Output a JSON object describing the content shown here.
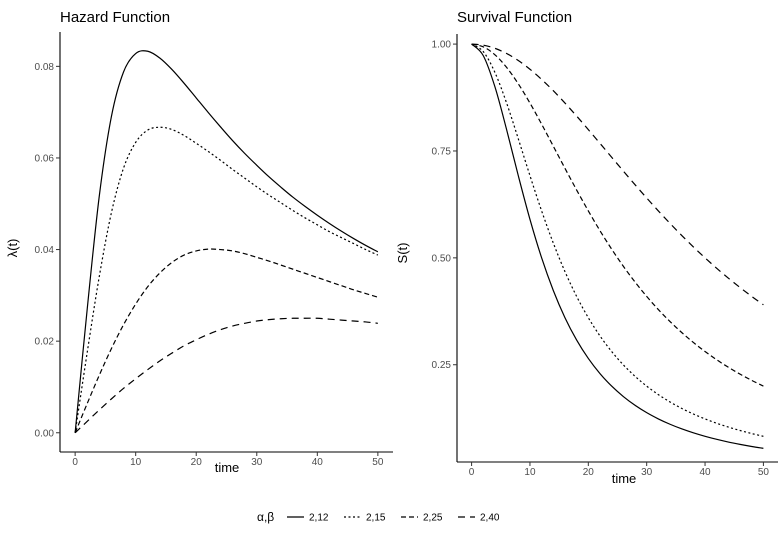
{
  "chart_data": [
    {
      "type": "line",
      "title": "Hazard Function",
      "xlabel": "time",
      "ylabel": "λ(t)",
      "xlim": [
        -2.5,
        52.5
      ],
      "ylim": [
        -0.0042,
        0.0875
      ],
      "xticks": [
        0,
        10,
        20,
        30,
        40,
        50
      ],
      "xtick_labels": [
        "0",
        "10",
        "20",
        "30",
        "40",
        "50"
      ],
      "yticks": [
        0,
        0.02,
        0.04,
        0.06,
        0.08
      ],
      "ytick_labels": [
        "0.00",
        "0.02",
        "0.04",
        "0.06",
        "0.08"
      ],
      "grid": false,
      "x": [
        0,
        2,
        4,
        6,
        8,
        10,
        12,
        14,
        16,
        18,
        20,
        22,
        24,
        26,
        28,
        30,
        32,
        34,
        36,
        38,
        40,
        42,
        44,
        46,
        48,
        50
      ],
      "series": [
        {
          "name": "2,12",
          "dash": "solid",
          "values": [
            0,
            0.0271,
            0.0518,
            0.0691,
            0.0788,
            0.0828,
            0.0833,
            0.0818,
            0.0793,
            0.0763,
            0.0731,
            0.0699,
            0.0668,
            0.0638,
            0.061,
            0.0584,
            0.0559,
            0.0536,
            0.0514,
            0.0494,
            0.0475,
            0.0457,
            0.044,
            0.0424,
            0.0409,
            0.0395
          ]
        },
        {
          "name": "2,15",
          "dash": "dotted",
          "values": [
            0,
            0.0176,
            0.0342,
            0.0481,
            0.0578,
            0.0634,
            0.0661,
            0.0667,
            0.0662,
            0.0649,
            0.0632,
            0.0614,
            0.0595,
            0.0575,
            0.0556,
            0.0537,
            0.0519,
            0.0502,
            0.0485,
            0.0469,
            0.0454,
            0.0439,
            0.0426,
            0.0413,
            0.04,
            0.0388
          ]
        },
        {
          "name": "2,25",
          "dash": "dashed",
          "values": [
            0,
            0.0064,
            0.0126,
            0.0184,
            0.0236,
            0.0281,
            0.0319,
            0.0349,
            0.0372,
            0.0388,
            0.0397,
            0.0401,
            0.04,
            0.0397,
            0.0391,
            0.0383,
            0.0375,
            0.0366,
            0.0357,
            0.0348,
            0.0339,
            0.033,
            0.0321,
            0.0312,
            0.0304,
            0.0296
          ]
        },
        {
          "name": "2,40",
          "dash": "longdash",
          "values": [
            0,
            0.0025,
            0.005,
            0.0074,
            0.0097,
            0.0118,
            0.0138,
            0.0157,
            0.0174,
            0.019,
            0.0203,
            0.0215,
            0.0225,
            0.0233,
            0.0239,
            0.0244,
            0.0247,
            0.0249,
            0.025,
            0.025,
            0.025,
            0.0248,
            0.0246,
            0.0244,
            0.0242,
            0.0239
          ]
        }
      ]
    },
    {
      "type": "line",
      "title": "Survival Function",
      "xlabel": "time",
      "ylabel": "S(t)",
      "xlim": [
        -2.5,
        52.5
      ],
      "ylim": [
        0.0225,
        1.0236
      ],
      "xticks": [
        0,
        10,
        20,
        30,
        40,
        50
      ],
      "xtick_labels": [
        "0",
        "10",
        "20",
        "30",
        "40",
        "50"
      ],
      "yticks": [
        0.25,
        0.5,
        0.75,
        1.0
      ],
      "ytick_labels": [
        "0.25",
        "0.50",
        "0.75",
        "1.00"
      ],
      "grid": false,
      "x": [
        0,
        2,
        4,
        6,
        8,
        10,
        12,
        14,
        16,
        18,
        20,
        22,
        24,
        26,
        28,
        30,
        32,
        34,
        36,
        38,
        40,
        42,
        44,
        46,
        48,
        50
      ],
      "series": [
        {
          "name": "2,12",
          "dash": "solid",
          "values": [
            1.0,
            0.973,
            0.9,
            0.8,
            0.6923,
            0.5902,
            0.5,
            0.4237,
            0.36,
            0.3077,
            0.2647,
            0.2293,
            0.2,
            0.1756,
            0.1552,
            0.1379,
            0.1233,
            0.1108,
            0.1,
            0.0907,
            0.0826,
            0.0755,
            0.0692,
            0.0637,
            0.0588,
            0.0545
          ]
        },
        {
          "name": "2,15",
          "dash": "dotted",
          "values": [
            1.0,
            0.9825,
            0.9336,
            0.8621,
            0.7785,
            0.6923,
            0.6098,
            0.5346,
            0.4678,
            0.4098,
            0.36,
            0.3174,
            0.2809,
            0.2497,
            0.223,
            0.2,
            0.1801,
            0.1629,
            0.1479,
            0.1348,
            0.1233,
            0.1131,
            0.1041,
            0.0962,
            0.089,
            0.0826
          ]
        },
        {
          "name": "2,25",
          "dash": "dashed",
          "values": [
            1.0,
            0.9936,
            0.975,
            0.9455,
            0.9071,
            0.8621,
            0.8127,
            0.7612,
            0.7094,
            0.6586,
            0.6098,
            0.5635,
            0.5204,
            0.4803,
            0.4436,
            0.4098,
            0.379,
            0.351,
            0.3254,
            0.3021,
            0.2809,
            0.2616,
            0.244,
            0.228,
            0.2134,
            0.2
          ]
        },
        {
          "name": "2,40",
          "dash": "longdash",
          "values": [
            1.0,
            0.9975,
            0.9901,
            0.978,
            0.9615,
            0.9412,
            0.9174,
            0.8909,
            0.8621,
            0.8316,
            0.8,
            0.7678,
            0.7353,
            0.703,
            0.6711,
            0.64,
            0.6098,
            0.5806,
            0.5525,
            0.5256,
            0.5,
            0.4756,
            0.4525,
            0.4306,
            0.4098,
            0.3902
          ]
        }
      ]
    }
  ],
  "legend": {
    "title": "α,β",
    "position": "bottom",
    "items": [
      {
        "label": "2,12",
        "dash": "solid"
      },
      {
        "label": "2,15",
        "dash": "dotted"
      },
      {
        "label": "2,25",
        "dash": "dashed"
      },
      {
        "label": "2,40",
        "dash": "longdash"
      }
    ]
  },
  "colors": {
    "line": "#000000",
    "axis": "#000000",
    "tick_text": "#4d4d4d"
  }
}
